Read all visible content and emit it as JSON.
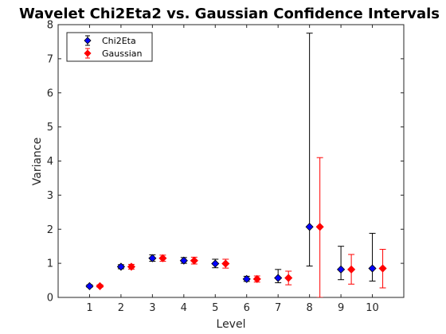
{
  "chart_data": {
    "type": "scatter",
    "title": "Wavelet Chi2Eta2 vs. Gaussian Confidence Intervals",
    "xlabel": "Level",
    "ylabel": "Variance",
    "xlim": [
      0,
      11
    ],
    "ylim": [
      0,
      8
    ],
    "xticks": [
      1,
      2,
      3,
      4,
      5,
      6,
      7,
      8,
      9,
      10
    ],
    "yticks": [
      0,
      1,
      2,
      3,
      4,
      5,
      6,
      7,
      8
    ],
    "grid": false,
    "legend_position": "top-left",
    "series": [
      {
        "name": "Chi2Eta",
        "color": "#0000ff",
        "errorbar_color": "#000000",
        "offset": 0,
        "x": [
          1,
          2,
          3,
          4,
          5,
          6,
          7,
          8,
          9,
          10
        ],
        "y": [
          0.33,
          0.9,
          1.15,
          1.08,
          0.99,
          0.54,
          0.57,
          2.07,
          0.82,
          0.85
        ],
        "lower": [
          0.3,
          0.84,
          1.06,
          1.0,
          0.87,
          0.47,
          0.43,
          0.92,
          0.52,
          0.48
        ],
        "upper": [
          0.37,
          0.96,
          1.25,
          1.17,
          1.12,
          0.62,
          0.82,
          7.75,
          1.5,
          1.88
        ]
      },
      {
        "name": "Gaussian",
        "color": "#ff0000",
        "errorbar_color": "#ff0000",
        "offset": 0.33,
        "x": [
          1,
          2,
          3,
          4,
          5,
          6,
          7,
          8,
          9,
          10
        ],
        "y": [
          0.33,
          0.9,
          1.15,
          1.08,
          0.99,
          0.54,
          0.57,
          2.07,
          0.82,
          0.85
        ],
        "lower": [
          0.3,
          0.83,
          1.06,
          0.98,
          0.86,
          0.45,
          0.37,
          0.0,
          0.39,
          0.28
        ],
        "upper": [
          0.37,
          0.97,
          1.24,
          1.18,
          1.12,
          0.63,
          0.77,
          4.1,
          1.26,
          1.41
        ]
      }
    ]
  }
}
